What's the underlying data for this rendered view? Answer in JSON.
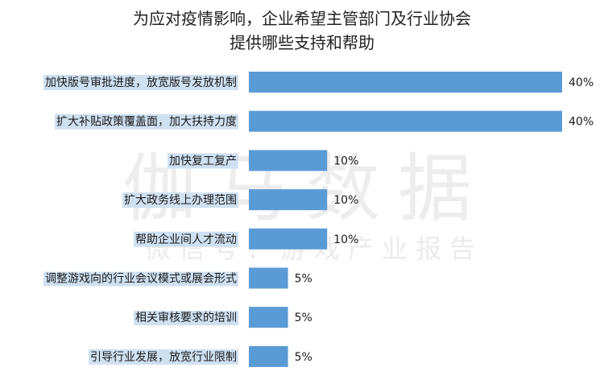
{
  "chart_data": {
    "type": "bar",
    "orientation": "horizontal",
    "title_lines": [
      "为应对疫情影响，企业希望主管部门及行业协会",
      "提供哪些支持和帮助"
    ],
    "categories": [
      "加快版号审批进度，放宽版号发放机制",
      "扩大补贴政策覆盖面，加大扶持力度",
      "加快复工复产",
      "扩大政务线上办理范围",
      "帮助企业间人才流动",
      "调整游戏向的行业会议模式或展会形式",
      "相关审核要求的培训",
      "引导行业发展，放宽行业限制"
    ],
    "values": [
      40,
      40,
      10,
      10,
      10,
      5,
      5,
      5
    ],
    "value_labels": [
      "40%",
      "40%",
      "10%",
      "10%",
      "10%",
      "5%",
      "5%",
      "5%"
    ],
    "xlim": [
      0,
      40
    ],
    "unit": "%",
    "grid": false,
    "legend": "none",
    "colors": {
      "bar": "#5b9bd5",
      "label_highlight": "#cfe0f1"
    }
  },
  "watermark": {
    "main": "伽马数据",
    "sub": "微信号：游戏产业报告"
  }
}
